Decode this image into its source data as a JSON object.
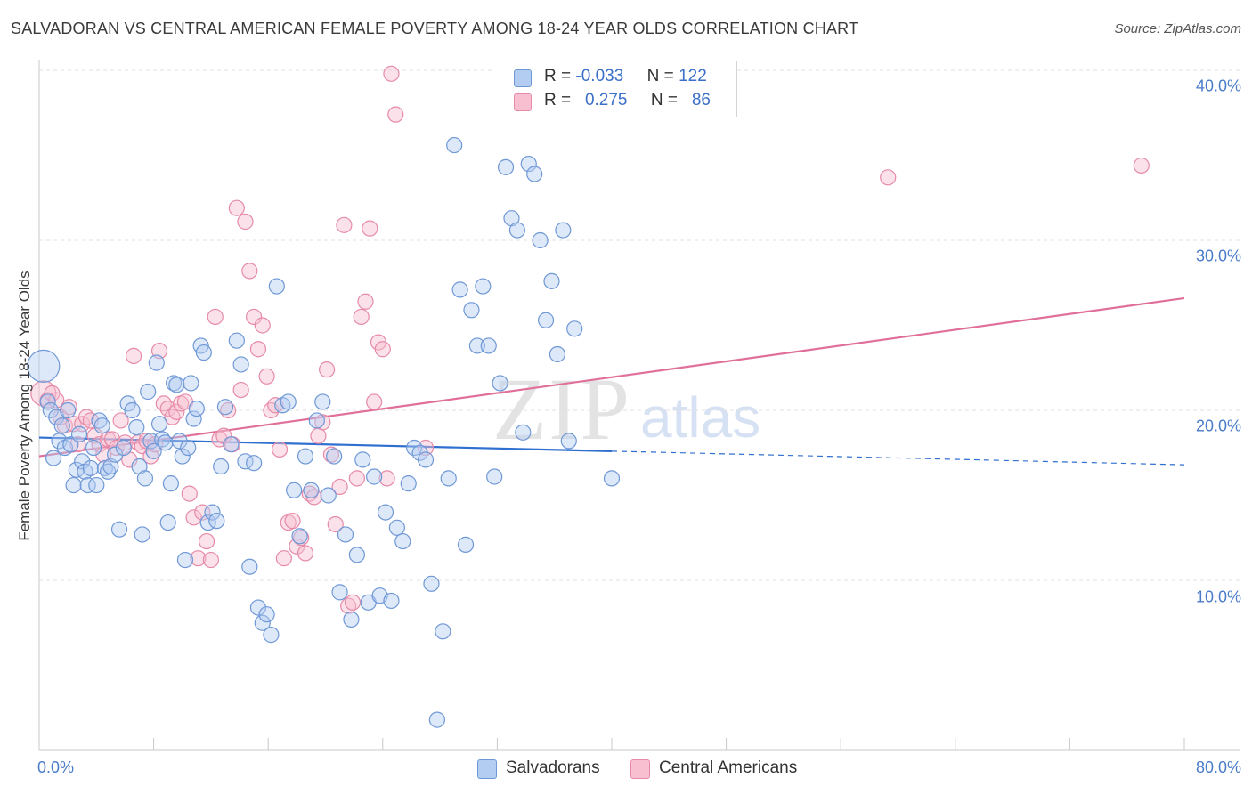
{
  "header": {
    "title": "SALVADORAN VS CENTRAL AMERICAN FEMALE POVERTY AMONG 18-24 YEAR OLDS CORRELATION CHART",
    "source": "Source: ZipAtlas.com"
  },
  "watermark": {
    "part1": "ZIP",
    "part2": "atlas"
  },
  "legend": {
    "rows": [
      {
        "r_label": "R =",
        "r_value": "-0.033",
        "n_label": "N =",
        "n_value": "122"
      },
      {
        "r_label": "R =",
        "r_value": "0.275",
        "n_label": "N =",
        "n_value": "86"
      }
    ]
  },
  "bottom_legend": {
    "a": "Salvadorans",
    "b": "Central Americans"
  },
  "colors": {
    "blue_fill": "#b3cdf2",
    "blue_stroke": "#6f98d6",
    "blue_line": "#2f6fcf",
    "pink_fill": "#f7bfd0",
    "pink_stroke": "#e68aa8",
    "pink_line": "#e0709a",
    "tick_text": "#4a7cc9"
  },
  "chart_data": {
    "type": "scatter",
    "title": "SALVADORAN VS CENTRAL AMERICAN FEMALE POVERTY AMONG 18-24 YEAR OLDS CORRELATION CHART",
    "xlabel": "",
    "ylabel": "Female Poverty Among 18-24 Year Olds",
    "xlim": [
      0,
      80
    ],
    "ylim": [
      0,
      40
    ],
    "x_tick_labels": [
      "0.0%",
      "80.0%"
    ],
    "y_tick_labels": [
      "10.0%",
      "20.0%",
      "30.0%",
      "40.0%"
    ],
    "y_ticks": [
      10,
      20,
      30,
      40
    ],
    "grid": "horizontal dashed",
    "legend_position": "top-center",
    "series": [
      {
        "name": "Salvadorans",
        "r": -0.033,
        "n": 122,
        "trend": {
          "x": [
            0,
            40
          ],
          "y": [
            18.4,
            17.6
          ]
        },
        "trend_extension": {
          "x": [
            40,
            80
          ],
          "y": [
            17.6,
            16.8
          ]
        },
        "points": [
          [
            0.3,
            22.6
          ],
          [
            0.6,
            20.5
          ],
          [
            0.8,
            20.0
          ],
          [
            1.0,
            17.2
          ],
          [
            1.2,
            19.6
          ],
          [
            1.4,
            18.2
          ],
          [
            1.6,
            19.1
          ],
          [
            1.8,
            17.8
          ],
          [
            2.0,
            20.0
          ],
          [
            2.2,
            18.0
          ],
          [
            2.4,
            15.6
          ],
          [
            2.6,
            16.5
          ],
          [
            2.8,
            18.6
          ],
          [
            3.0,
            17.0
          ],
          [
            3.2,
            16.4
          ],
          [
            3.4,
            15.6
          ],
          [
            3.6,
            16.6
          ],
          [
            3.8,
            17.8
          ],
          [
            4.0,
            15.6
          ],
          [
            4.2,
            19.4
          ],
          [
            4.4,
            19.1
          ],
          [
            4.6,
            16.6
          ],
          [
            4.8,
            16.4
          ],
          [
            5.0,
            16.7
          ],
          [
            5.3,
            17.4
          ],
          [
            5.6,
            13.0
          ],
          [
            5.9,
            17.8
          ],
          [
            6.2,
            20.4
          ],
          [
            6.5,
            20.0
          ],
          [
            6.8,
            19.0
          ],
          [
            7.0,
            16.7
          ],
          [
            7.2,
            12.7
          ],
          [
            7.4,
            16.0
          ],
          [
            7.6,
            21.1
          ],
          [
            7.8,
            18.2
          ],
          [
            8.0,
            17.6
          ],
          [
            8.2,
            22.8
          ],
          [
            8.4,
            19.2
          ],
          [
            8.6,
            18.3
          ],
          [
            8.8,
            18.1
          ],
          [
            9.0,
            13.4
          ],
          [
            9.2,
            15.7
          ],
          [
            9.4,
            21.6
          ],
          [
            9.6,
            21.5
          ],
          [
            9.8,
            18.2
          ],
          [
            10.0,
            17.3
          ],
          [
            10.2,
            11.2
          ],
          [
            10.4,
            17.8
          ],
          [
            10.6,
            21.6
          ],
          [
            10.8,
            19.5
          ],
          [
            11.0,
            20.1
          ],
          [
            11.3,
            23.8
          ],
          [
            11.5,
            23.4
          ],
          [
            11.8,
            13.4
          ],
          [
            12.1,
            14.0
          ],
          [
            12.4,
            13.5
          ],
          [
            12.7,
            16.7
          ],
          [
            13.0,
            20.2
          ],
          [
            13.4,
            18.0
          ],
          [
            13.8,
            24.1
          ],
          [
            14.1,
            22.7
          ],
          [
            14.4,
            17.0
          ],
          [
            14.7,
            10.8
          ],
          [
            15.0,
            16.9
          ],
          [
            15.3,
            8.4
          ],
          [
            15.6,
            7.5
          ],
          [
            15.9,
            8.0
          ],
          [
            16.2,
            6.8
          ],
          [
            16.6,
            27.3
          ],
          [
            17.0,
            20.3
          ],
          [
            17.4,
            20.5
          ],
          [
            17.8,
            15.3
          ],
          [
            18.2,
            12.6
          ],
          [
            18.6,
            17.3
          ],
          [
            19.0,
            15.3
          ],
          [
            19.4,
            19.4
          ],
          [
            19.8,
            20.5
          ],
          [
            20.2,
            15.0
          ],
          [
            20.6,
            17.3
          ],
          [
            21.0,
            9.3
          ],
          [
            21.4,
            12.7
          ],
          [
            21.8,
            7.7
          ],
          [
            22.2,
            11.5
          ],
          [
            22.6,
            17.1
          ],
          [
            23.0,
            8.7
          ],
          [
            23.4,
            16.1
          ],
          [
            23.8,
            9.1
          ],
          [
            24.2,
            14.0
          ],
          [
            24.6,
            8.8
          ],
          [
            25.0,
            13.1
          ],
          [
            25.4,
            12.3
          ],
          [
            25.8,
            15.7
          ],
          [
            26.2,
            17.8
          ],
          [
            26.6,
            17.5
          ],
          [
            27.0,
            17.1
          ],
          [
            27.4,
            9.8
          ],
          [
            27.8,
            1.8
          ],
          [
            28.2,
            7.0
          ],
          [
            28.6,
            16.0
          ],
          [
            29.0,
            35.6
          ],
          [
            29.4,
            27.1
          ],
          [
            29.8,
            12.1
          ],
          [
            30.2,
            25.9
          ],
          [
            30.6,
            23.8
          ],
          [
            31.0,
            27.3
          ],
          [
            31.4,
            23.8
          ],
          [
            31.8,
            16.1
          ],
          [
            32.2,
            21.6
          ],
          [
            32.6,
            34.3
          ],
          [
            33.0,
            31.3
          ],
          [
            33.4,
            30.6
          ],
          [
            33.8,
            18.7
          ],
          [
            34.2,
            34.5
          ],
          [
            34.6,
            33.9
          ],
          [
            35.0,
            30.0
          ],
          [
            35.4,
            25.3
          ],
          [
            35.8,
            27.6
          ],
          [
            36.2,
            23.3
          ],
          [
            36.6,
            30.6
          ],
          [
            37.0,
            18.2
          ],
          [
            37.4,
            24.8
          ],
          [
            40.0,
            16.0
          ]
        ]
      },
      {
        "name": "Central Americans",
        "r": 0.275,
        "n": 86,
        "trend": {
          "x": [
            0,
            80
          ],
          "y": [
            17.3,
            26.6
          ]
        },
        "points": [
          [
            0.3,
            21.0
          ],
          [
            0.6,
            20.6
          ],
          [
            0.9,
            21.0
          ],
          [
            1.2,
            20.6
          ],
          [
            1.5,
            19.6
          ],
          [
            1.8,
            19.1
          ],
          [
            2.1,
            20.2
          ],
          [
            2.4,
            19.2
          ],
          [
            2.7,
            18.0
          ],
          [
            3.0,
            19.2
          ],
          [
            3.3,
            19.6
          ],
          [
            3.6,
            19.4
          ],
          [
            3.9,
            18.5
          ],
          [
            4.2,
            18.0
          ],
          [
            4.5,
            17.4
          ],
          [
            4.8,
            18.3
          ],
          [
            5.1,
            18.3
          ],
          [
            5.4,
            17.8
          ],
          [
            5.7,
            19.4
          ],
          [
            6.0,
            18.1
          ],
          [
            6.3,
            17.1
          ],
          [
            6.6,
            23.2
          ],
          [
            6.9,
            18.1
          ],
          [
            7.2,
            17.9
          ],
          [
            7.5,
            18.2
          ],
          [
            7.8,
            17.3
          ],
          [
            8.1,
            18.0
          ],
          [
            8.4,
            23.5
          ],
          [
            8.7,
            20.4
          ],
          [
            9.0,
            20.1
          ],
          [
            9.3,
            19.6
          ],
          [
            9.6,
            19.9
          ],
          [
            9.9,
            20.4
          ],
          [
            10.2,
            20.5
          ],
          [
            10.5,
            15.1
          ],
          [
            10.8,
            13.7
          ],
          [
            11.1,
            11.3
          ],
          [
            11.4,
            14.0
          ],
          [
            11.7,
            12.3
          ],
          [
            12.0,
            11.2
          ],
          [
            12.3,
            25.5
          ],
          [
            12.6,
            18.3
          ],
          [
            12.9,
            18.5
          ],
          [
            13.2,
            20.0
          ],
          [
            13.5,
            18.0
          ],
          [
            13.8,
            31.9
          ],
          [
            14.1,
            21.2
          ],
          [
            14.4,
            31.1
          ],
          [
            14.7,
            28.2
          ],
          [
            15.0,
            25.5
          ],
          [
            15.3,
            23.6
          ],
          [
            15.6,
            25.0
          ],
          [
            15.9,
            22.0
          ],
          [
            16.2,
            20.0
          ],
          [
            16.5,
            20.3
          ],
          [
            16.8,
            17.7
          ],
          [
            17.1,
            11.3
          ],
          [
            17.4,
            13.4
          ],
          [
            17.7,
            13.5
          ],
          [
            18.0,
            12.0
          ],
          [
            18.3,
            12.5
          ],
          [
            18.6,
            11.6
          ],
          [
            18.9,
            15.1
          ],
          [
            19.2,
            14.9
          ],
          [
            19.5,
            18.5
          ],
          [
            19.8,
            19.3
          ],
          [
            20.1,
            22.4
          ],
          [
            20.4,
            17.4
          ],
          [
            20.7,
            13.3
          ],
          [
            21.0,
            15.5
          ],
          [
            21.3,
            30.9
          ],
          [
            21.6,
            8.5
          ],
          [
            21.9,
            8.7
          ],
          [
            22.2,
            16.0
          ],
          [
            22.5,
            25.5
          ],
          [
            22.8,
            26.4
          ],
          [
            23.1,
            30.7
          ],
          [
            23.4,
            20.5
          ],
          [
            23.7,
            24.0
          ],
          [
            24.0,
            23.6
          ],
          [
            24.3,
            16.0
          ],
          [
            24.6,
            39.8
          ],
          [
            24.9,
            37.4
          ],
          [
            27.0,
            17.8
          ],
          [
            59.3,
            33.7
          ],
          [
            77.0,
            34.4
          ]
        ]
      }
    ]
  }
}
